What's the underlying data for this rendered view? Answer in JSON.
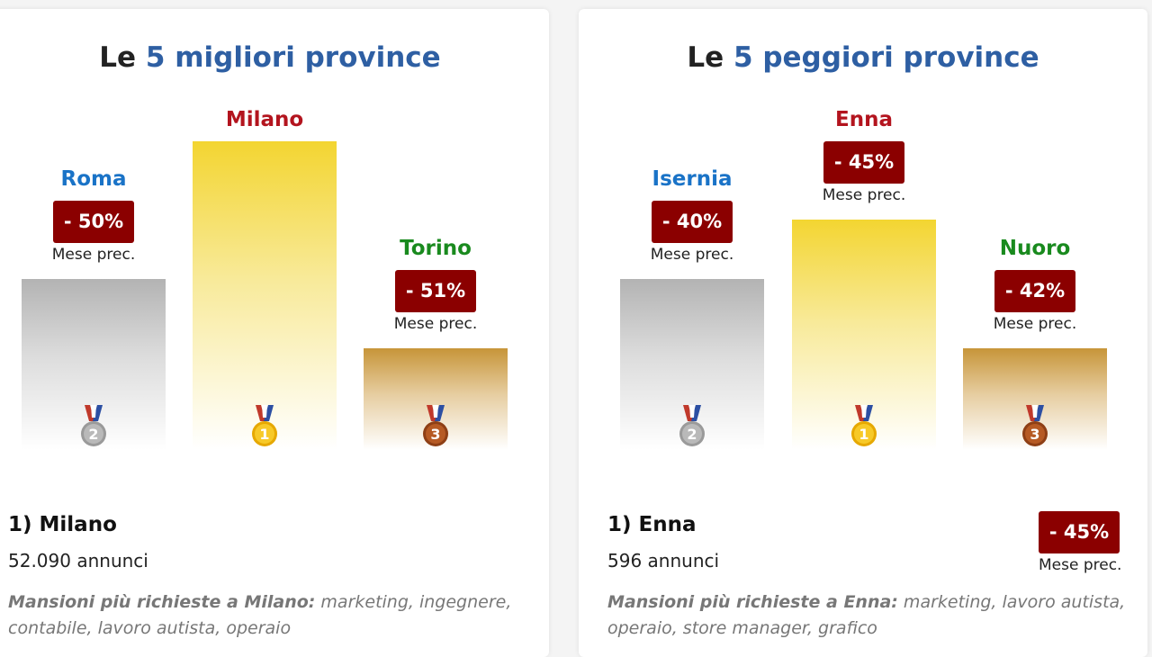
{
  "best": {
    "title_prefix": "Le",
    "title_accent": "5 migliori province",
    "podium": [
      {
        "name": "Roma",
        "color": "#1a73c7",
        "change": "- 50%",
        "prev_label": "Mese prec.",
        "medal": "2"
      },
      {
        "name": "Milano",
        "color": "#b3141e",
        "change": "",
        "prev_label": "",
        "medal": "1"
      },
      {
        "name": "Torino",
        "color": "#198a1e",
        "change": "- 51%",
        "prev_label": "Mese prec.",
        "medal": "3"
      }
    ],
    "rank": "1) Milano",
    "count": "52.090 annunci",
    "mansioni_label": "Mansioni più richieste a Milano:",
    "mansioni_text": " marketing, ingegnere, contabile, lavoro autista, operaio"
  },
  "worst": {
    "title_prefix": "Le",
    "title_accent": "5 peggiori province",
    "podium": [
      {
        "name": "Isernia",
        "color": "#1a73c7",
        "change": "- 40%",
        "prev_label": "Mese prec.",
        "medal": "2"
      },
      {
        "name": "Enna",
        "color": "#b3141e",
        "change": "- 45%",
        "prev_label": "Mese prec.",
        "medal": "1"
      },
      {
        "name": "Nuoro",
        "color": "#198a1e",
        "change": "- 42%",
        "prev_label": "Mese prec.",
        "medal": "3"
      }
    ],
    "rank": "1) Enna",
    "count": "596 annunci",
    "side_change": "- 45%",
    "side_prev_label": "Mese prec.",
    "mansioni_label": "Mansioni più richieste a Enna:",
    "mansioni_text": " marketing, lavoro autista, operaio, store manager, grafico"
  }
}
